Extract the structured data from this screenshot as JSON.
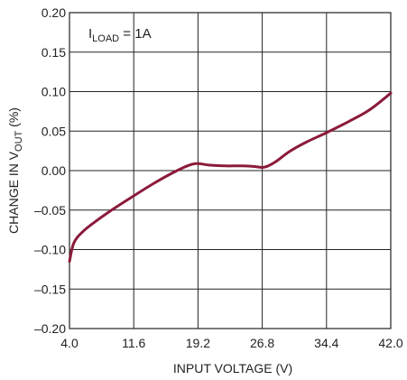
{
  "chart_data": {
    "type": "line",
    "xlabel": "INPUT VOLTAGE (V)",
    "ylabel": {
      "prefix": "CHANGE IN V",
      "sub": "OUT",
      "suffix": " (%)"
    },
    "annotation": {
      "prefix": "I",
      "sub": "LOAD",
      "suffix": " = 1A"
    },
    "xlim": [
      4.0,
      42.0
    ],
    "ylim": [
      -0.2,
      0.2
    ],
    "grid": true,
    "x_ticks": [
      "4.0",
      "11.6",
      "19.2",
      "26.8",
      "34.4",
      "42.0"
    ],
    "y_ticks": [
      "0.20",
      "0.15",
      "0.10",
      "0.05",
      "0.00",
      "–0.05",
      "–0.10",
      "–0.15",
      "–0.20"
    ],
    "series": [
      {
        "color": "#8b1a3a",
        "x": [
          4.0,
          4.5,
          5.5,
          7.0,
          9.0,
          11.6,
          14.0,
          16.0,
          17.5,
          18.5,
          19.2,
          20.5,
          22.5,
          24.5,
          26.0,
          26.8,
          27.5,
          28.5,
          30.0,
          32.0,
          34.4,
          37.0,
          39.5,
          42.0
        ],
        "y": [
          -0.115,
          -0.092,
          -0.078,
          -0.065,
          -0.05,
          -0.032,
          -0.016,
          -0.004,
          0.004,
          0.008,
          0.009,
          0.007,
          0.006,
          0.006,
          0.005,
          0.004,
          0.006,
          0.012,
          0.024,
          0.036,
          0.048,
          0.062,
          0.077,
          0.098
        ]
      }
    ]
  }
}
